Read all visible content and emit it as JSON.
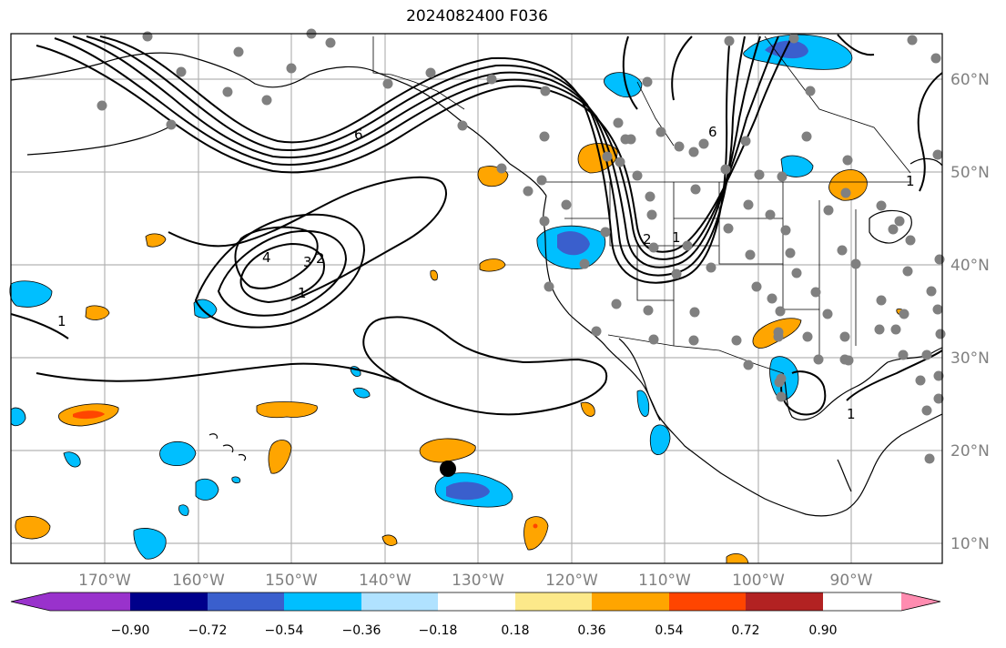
{
  "title": "2024082400 F036",
  "lon_labels": [
    "170°W",
    "160°W",
    "150°W",
    "140°W",
    "130°W",
    "120°W",
    "110°W",
    "100°W",
    "90°W"
  ],
  "lat_labels": [
    "60°N",
    "50°N",
    "40°N",
    "30°N",
    "20°N",
    "10°N"
  ],
  "contour_labels": [
    "6",
    "4",
    "3",
    "2",
    "1",
    "1",
    "1",
    "6",
    "2",
    "1",
    "1"
  ],
  "colorbar": {
    "ticks": [
      "−0.90",
      "−0.72",
      "−0.54",
      "−0.36",
      "−0.18",
      "0.18",
      "0.36",
      "0.54",
      "0.72",
      "0.90"
    ],
    "colors": [
      "#9932cc",
      "#00008b",
      "#3a5fcd",
      "#00bfff",
      "#b0e2ff",
      "#ffffff",
      "#fce98a",
      "#ffa500",
      "#ff4500",
      "#b22222",
      "#ff8cb0"
    ]
  },
  "field_colors": {
    "neg_light": "#00bfff",
    "neg_dark": "#3a5fcd",
    "pos_light": "#ffa500",
    "pos_dark": "#ff4500"
  },
  "station_color": "#808080"
}
